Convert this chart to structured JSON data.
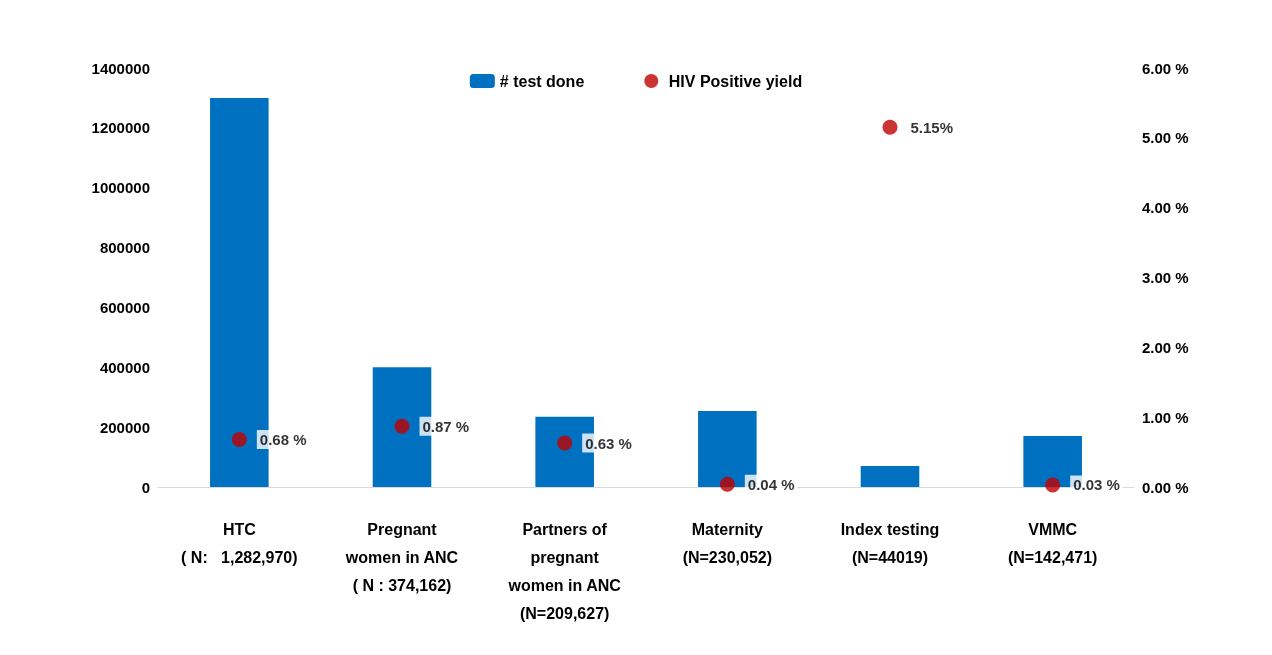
{
  "chart_data": {
    "type": "bar",
    "categories": [
      "HTC\n( N:   1,282,970)",
      "Pregnant\nwomen in ANC\n( N : 374,162)",
      "Partners of\npregnant\nwomen in ANC\n(N=209,627)",
      "Maternity\n(N=230,052)",
      "Index testing\n(N=44019)",
      "VMMC\n(N=142,471)"
    ],
    "series": [
      {
        "name": "# test done",
        "color": "#0070c0",
        "values": [
          1300000,
          400000,
          235000,
          254000,
          70000,
          170000
        ]
      },
      {
        "name": "HIV Positive yield",
        "type": "scatter",
        "axis": "y2",
        "color": "#c00000",
        "values": [
          0.68,
          0.87,
          0.63,
          0.04,
          5.15,
          0.03
        ],
        "value_labels": [
          "0.68 %",
          "0.87 %",
          "0.63 %",
          "0.04 %",
          "5.15%",
          "0.03 %"
        ]
      }
    ],
    "ylim": [
      0,
      1400000
    ],
    "yticks": [
      0,
      200000,
      400000,
      600000,
      800000,
      1000000,
      1200000,
      1400000
    ],
    "y2lim": [
      0,
      6
    ],
    "y2ticks": [
      {
        "value": 0,
        "label": "0.00 %"
      },
      {
        "value": 1,
        "label": "1.00 %"
      },
      {
        "value": 2,
        "label": "2.00 %"
      },
      {
        "value": 3,
        "label": "3.00 %"
      },
      {
        "value": 4,
        "label": "4.00 %"
      },
      {
        "value": 5,
        "label": "5.00 %"
      },
      {
        "value": 6,
        "label": "6.00 %"
      }
    ],
    "legend": "top",
    "marker": "circle",
    "grid": false
  }
}
